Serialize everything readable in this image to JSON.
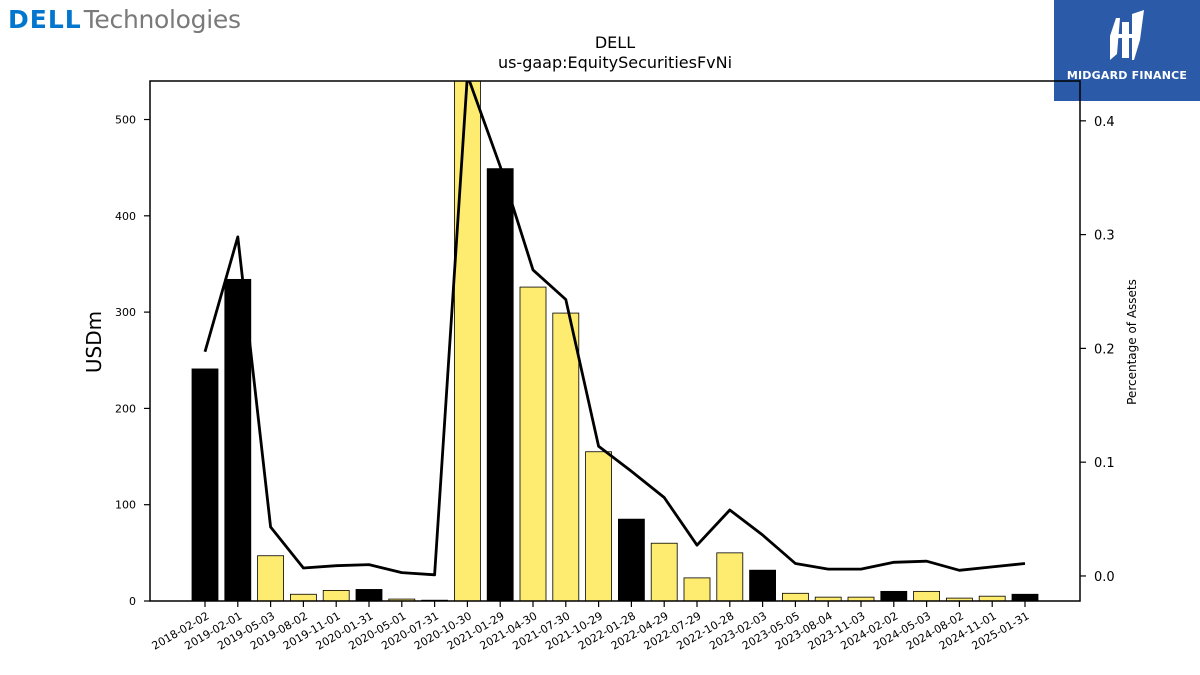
{
  "brand": {
    "dell": "DELL",
    "technologies": "Technologies",
    "midgard": "MIDGARD FINANCE"
  },
  "colors": {
    "highlight_bar": "#000000",
    "regular_bar": "#fdec6f",
    "line": "#000000",
    "midgard_bg": "#2b5aa8",
    "dell_blue": "#0076ce"
  },
  "chart_data": {
    "type": "bar",
    "title": "DELL",
    "subtitle": "us-gaap:EquitySecuritiesFvNi",
    "ylabel": "USDm",
    "y2label": "Percentage of Assets",
    "ylim": [
      0,
      540
    ],
    "y2lim": [
      -0.022,
      0.435
    ],
    "yticks": [
      0,
      100,
      200,
      300,
      400,
      500
    ],
    "y2ticks": [
      0.0,
      0.1,
      0.2,
      0.3,
      0.4
    ],
    "grid": false,
    "categories": [
      "2018-02-02",
      "2019-02-01",
      "2019-05-03",
      "2019-08-02",
      "2019-11-01",
      "2020-01-31",
      "2020-05-01",
      "2020-07-31",
      "2020-10-30",
      "2021-01-29",
      "2021-04-30",
      "2021-07-30",
      "2021-10-29",
      "2022-01-28",
      "2022-04-29",
      "2022-07-29",
      "2022-10-28",
      "2023-02-03",
      "2023-05-05",
      "2023-08-04",
      "2023-11-03",
      "2024-02-02",
      "2024-05-03",
      "2024-08-02",
      "2024-11-01",
      "2025-01-31"
    ],
    "series": [
      {
        "values": [
          241,
          334,
          47,
          7,
          11,
          12,
          2,
          0,
          540,
          449,
          326,
          299,
          155,
          85,
          60,
          24,
          50,
          32,
          8,
          4,
          4,
          10,
          10,
          3,
          5,
          7
        ],
        "highlight": [
          true,
          true,
          false,
          false,
          false,
          true,
          false,
          false,
          false,
          true,
          false,
          false,
          false,
          true,
          false,
          false,
          false,
          true,
          false,
          false,
          false,
          true,
          false,
          false,
          false,
          true
        ]
      },
      {
        "axis": "right",
        "values": [
          0.197,
          0.298,
          0.043,
          0.007,
          0.009,
          0.01,
          0.003,
          0.001,
          0.44,
          0.36,
          0.269,
          0.243,
          0.114,
          0.092,
          0.069,
          0.027,
          0.058,
          0.036,
          0.011,
          0.006,
          0.006,
          0.012,
          0.013,
          0.005,
          0.008,
          0.011
        ]
      }
    ]
  }
}
